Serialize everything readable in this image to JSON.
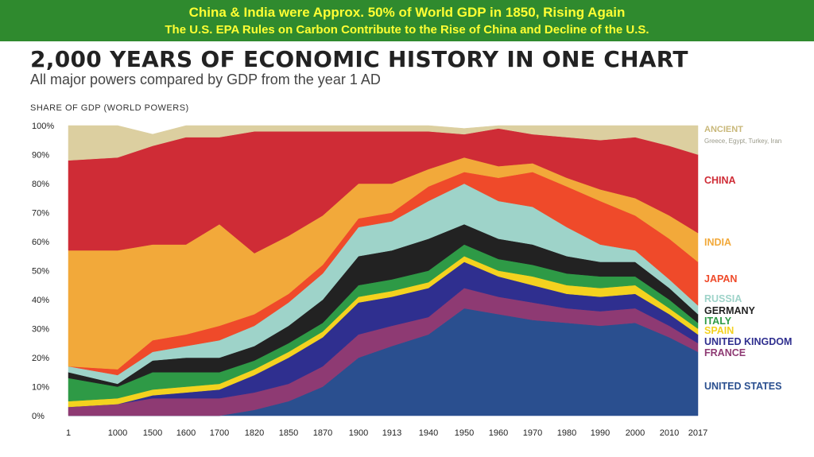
{
  "banner": {
    "line1": "China & India were Approx. 50% of World GDP in 1850,  Rising Again",
    "line2": "The U.S. EPA Rules on Carbon Contribute to the Rise of China and Decline of the U.S."
  },
  "chart_data": {
    "type": "area",
    "title": "2,000 YEARS OF ECONOMIC HISTORY IN ONE CHART",
    "subtitle": "All major powers compared by GDP from the year 1 AD",
    "ylabel": "SHARE OF GDP (WORLD POWERS)",
    "ylim": [
      0,
      100
    ],
    "yticks": [
      "0%",
      "10%",
      "20%",
      "30%",
      "40%",
      "50%",
      "60%",
      "70%",
      "80%",
      "90%",
      "100%"
    ],
    "x": [
      "1",
      "1000",
      "1500",
      "1600",
      "1700",
      "1820",
      "1850",
      "1870",
      "1900",
      "1913",
      "1940",
      "1950",
      "1960",
      "1970",
      "1980",
      "1990",
      "2000",
      "2010",
      "2017"
    ],
    "stacked": true,
    "series": [
      {
        "name": "UNITED STATES",
        "color": "#2a4f8f",
        "values": [
          0,
          0,
          0,
          0,
          0,
          2,
          5,
          10,
          20,
          24,
          28,
          37,
          35,
          33,
          32,
          31,
          32,
          27,
          22
        ]
      },
      {
        "name": "FRANCE",
        "color": "#8e3a73",
        "values": [
          3,
          4,
          6,
          6,
          6,
          6,
          6,
          7,
          8,
          7,
          6,
          7,
          6,
          6,
          5,
          5,
          5,
          4,
          3
        ]
      },
      {
        "name": "UNITED KINGDOM",
        "color": "#2f2f8f",
        "values": [
          0,
          0,
          1,
          2,
          3,
          6,
          9,
          10,
          11,
          10,
          10,
          9,
          7,
          6,
          5,
          5,
          5,
          4,
          3
        ]
      },
      {
        "name": "SPAIN",
        "color": "#f4d21f",
        "values": [
          2,
          2,
          2,
          2,
          2,
          2,
          2,
          2,
          2,
          2,
          2,
          2,
          2,
          3,
          3,
          3,
          3,
          2,
          2
        ]
      },
      {
        "name": "ITALY",
        "color": "#2e9a46",
        "values": [
          8,
          4,
          6,
          5,
          4,
          3,
          3,
          3,
          4,
          4,
          4,
          4,
          4,
          4,
          4,
          4,
          3,
          3,
          2
        ]
      },
      {
        "name": "GERMANY",
        "color": "#222222",
        "values": [
          2,
          1,
          4,
          5,
          5,
          5,
          6,
          8,
          10,
          10,
          11,
          7,
          7,
          7,
          6,
          5,
          5,
          4,
          3
        ]
      },
      {
        "name": "RUSSIA",
        "color": "#9ed3c9",
        "values": [
          2,
          3,
          3,
          4,
          6,
          7,
          8,
          9,
          10,
          10,
          13,
          14,
          13,
          13,
          10,
          6,
          4,
          3,
          3
        ]
      },
      {
        "name": "JAPAN",
        "color": "#ef4a2a",
        "values": [
          0,
          2,
          4,
          4,
          5,
          4,
          3,
          3,
          3,
          3,
          5,
          4,
          8,
          12,
          14,
          15,
          12,
          14,
          15
        ]
      },
      {
        "name": "INDIA",
        "color": "#f2a93a",
        "values": [
          40,
          41,
          33,
          31,
          35,
          21,
          20,
          17,
          12,
          10,
          6,
          5,
          4,
          3,
          3,
          4,
          6,
          8,
          10
        ]
      },
      {
        "name": "CHINA",
        "color": "#cf2c36",
        "values": [
          31,
          32,
          34,
          37,
          30,
          42,
          36,
          29,
          18,
          18,
          13,
          8,
          13,
          10,
          14,
          17,
          21,
          24,
          27
        ]
      },
      {
        "name": "ANCIENT",
        "note": "Greece, Egypt, Turkey, Iran",
        "color": "#dccfa0",
        "values": [
          12,
          11,
          4,
          4,
          4,
          2,
          2,
          2,
          2,
          2,
          2,
          2,
          1,
          3,
          4,
          5,
          4,
          7,
          10
        ]
      }
    ]
  }
}
